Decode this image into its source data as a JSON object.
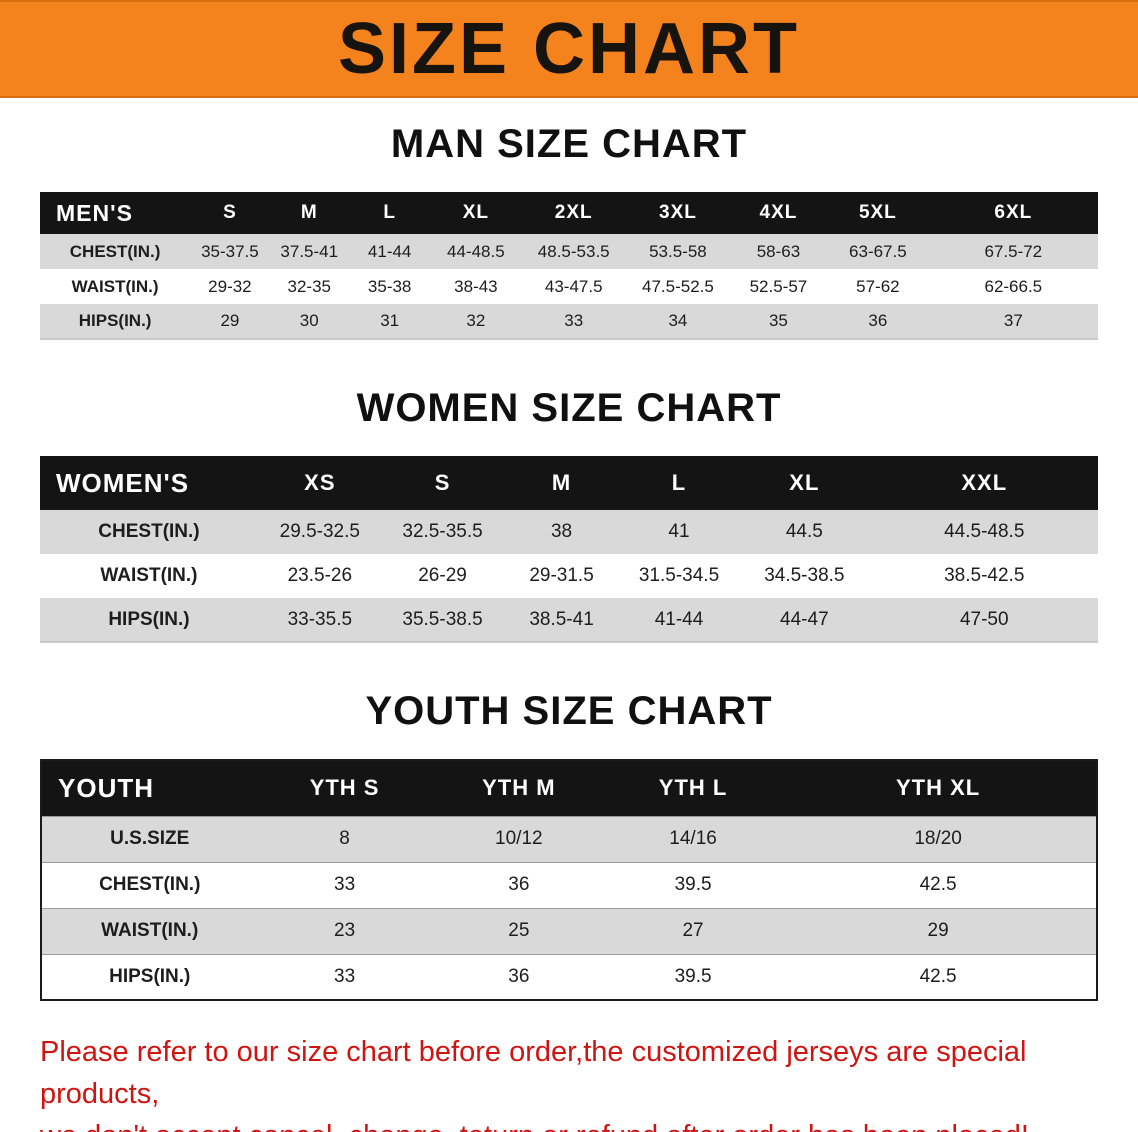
{
  "banner": {
    "title": "SIZE CHART"
  },
  "colors": {
    "banner": "#f5831d",
    "title": "#17130f",
    "header-bar": "#141414",
    "header-text": "#ffffff",
    "row-gray": "#d9d9d9",
    "text": "#1d1d1d",
    "alert": "#cf1512"
  },
  "sections": [
    {
      "id": "men",
      "heading": "MAN SIZE CHART",
      "table": {
        "header": [
          "MEN'S",
          "S",
          "M",
          "L",
          "XL",
          "2XL",
          "3XL",
          "4XL",
          "5XL",
          "6XL"
        ],
        "rows": [
          [
            "CHEST(IN.)",
            "35-37.5",
            "37.5-41",
            "41-44",
            "44-48.5",
            "48.5-53.5",
            "53.5-58",
            "58-63",
            "63-67.5",
            "67.5-72"
          ],
          [
            "WAIST(IN.)",
            "29-32",
            "32-35",
            "35-38",
            "38-43",
            "43-47.5",
            "47.5-52.5",
            "52.5-57",
            "57-62",
            "62-66.5"
          ],
          [
            "HIPS(IN.)",
            "29",
            "30",
            "31",
            "32",
            "33",
            "34",
            "35",
            "36",
            "37"
          ]
        ]
      }
    },
    {
      "id": "women",
      "heading": "WOMEN SIZE CHART",
      "table": {
        "header": [
          "WOMEN'S",
          "XS",
          "S",
          "M",
          "L",
          "XL",
          "XXL"
        ],
        "rows": [
          [
            "CHEST(IN.)",
            "29.5-32.5",
            "32.5-35.5",
            "38",
            "41",
            "44.5",
            "44.5-48.5"
          ],
          [
            "WAIST(IN.)",
            "23.5-26",
            "26-29",
            "29-31.5",
            "31.5-34.5",
            "34.5-38.5",
            "38.5-42.5"
          ],
          [
            "HIPS(IN.)",
            "33-35.5",
            "35.5-38.5",
            "38.5-41",
            "41-44",
            "44-47",
            "47-50"
          ]
        ]
      }
    },
    {
      "id": "youth",
      "heading": "YOUTH SIZE CHART",
      "table": {
        "header": [
          "YOUTH",
          "YTH S",
          "YTH M",
          "YTH L",
          "YTH XL"
        ],
        "rows": [
          [
            "U.S.SIZE",
            "8",
            "10/12",
            "14/16",
            "18/20"
          ],
          [
            "CHEST(IN.)",
            "33",
            "36",
            "39.5",
            "42.5"
          ],
          [
            "WAIST(IN.)",
            "23",
            "25",
            "27",
            "29"
          ],
          [
            "HIPS(IN.)",
            "33",
            "36",
            "39.5",
            "42.5"
          ]
        ]
      }
    }
  ],
  "disclaimer": {
    "lines": [
      "Please refer to our size chart before order,the customized jerseys are special products,",
      "we don't accept cancel, change, teturn or refund after order has been placed!"
    ]
  }
}
